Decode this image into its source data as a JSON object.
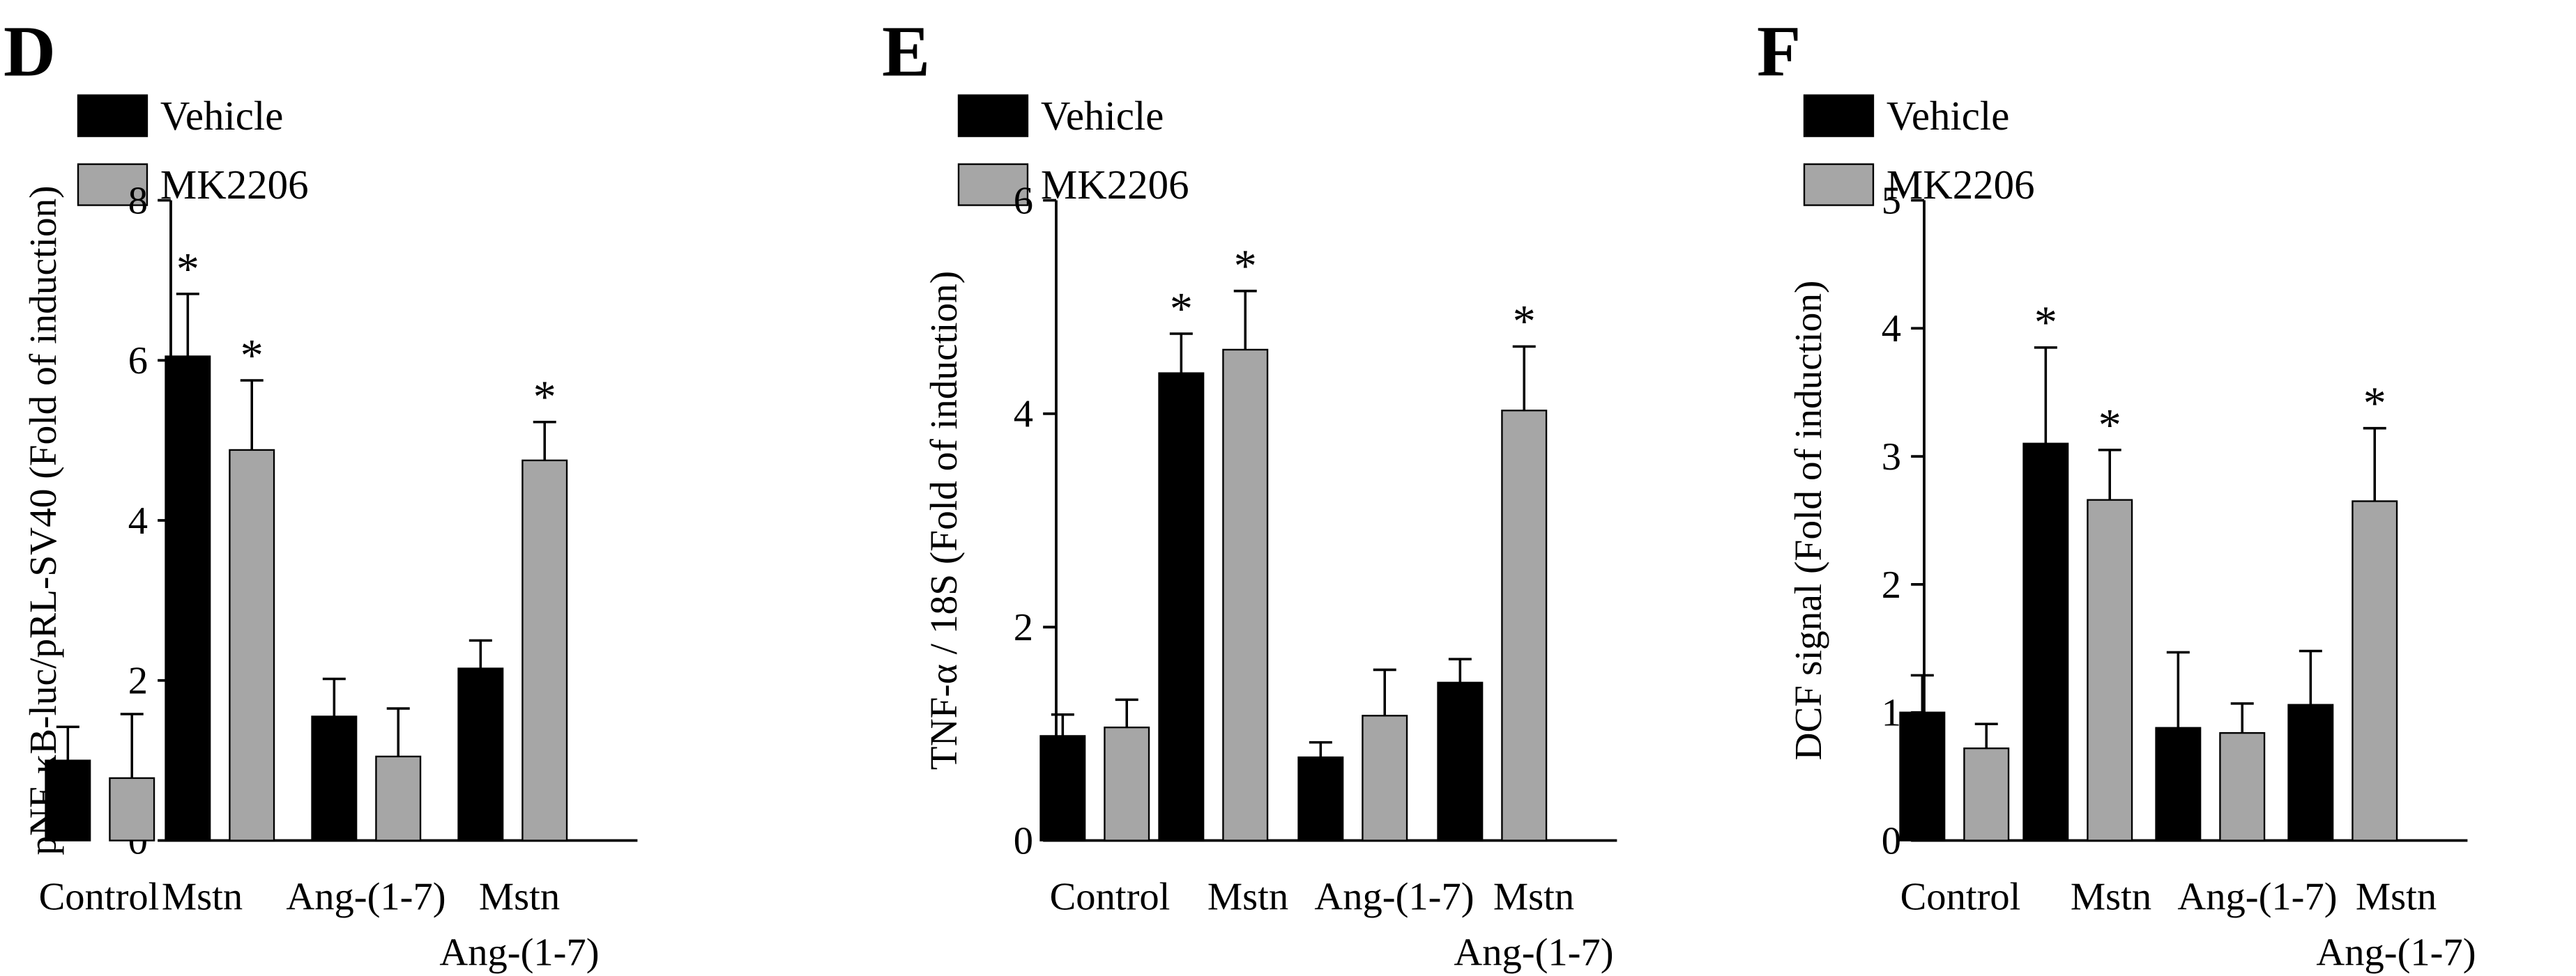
{
  "chart_data": [
    {
      "panel": "D",
      "type": "bar",
      "ylabel": "pNF-κB-luc/pRL-SV40 (Fold of induction)",
      "ylim": [
        0,
        8
      ],
      "yticks": [
        "0",
        "2",
        "4",
        "6",
        "8"
      ],
      "categories": [
        "Control",
        "Mstn",
        "Ang-(1-7)",
        "Mstn\nAng-(1-7)"
      ],
      "series": [
        {
          "name": "Vehicle",
          "color": "#000000",
          "values": [
            1.0,
            6.05,
            1.55,
            2.15
          ],
          "errors": [
            0.42,
            0.78,
            0.47,
            0.35
          ],
          "significance": [
            "",
            "*",
            "",
            ""
          ]
        },
        {
          "name": "MK2206",
          "color": "#a6a6a6",
          "values": [
            0.78,
            4.88,
            1.05,
            4.75
          ],
          "errors": [
            0.8,
            0.87,
            0.6,
            0.48
          ],
          "significance": [
            "",
            "*",
            "",
            "*"
          ]
        }
      ]
    },
    {
      "panel": "E",
      "type": "bar",
      "ylabel": "TNF-α / 18S (Fold of induction)",
      "ylim": [
        0,
        6
      ],
      "yticks": [
        "0",
        "2",
        "4",
        "6"
      ],
      "categories": [
        "Control",
        "Mstn",
        "Ang-(1-7)",
        "Mstn\nAng-(1-7)"
      ],
      "series": [
        {
          "name": "Vehicle",
          "color": "#000000",
          "values": [
            0.98,
            4.38,
            0.78,
            1.48
          ],
          "errors": [
            0.2,
            0.37,
            0.14,
            0.22
          ],
          "significance": [
            "",
            "*",
            "",
            ""
          ]
        },
        {
          "name": "MK2206",
          "color": "#a6a6a6",
          "values": [
            1.06,
            4.6,
            1.17,
            4.03
          ],
          "errors": [
            0.26,
            0.55,
            0.43,
            0.6
          ],
          "significance": [
            "",
            "*",
            "",
            "*"
          ]
        }
      ]
    },
    {
      "panel": "F",
      "type": "bar",
      "ylabel": "DCF signal (Fold of induction)",
      "ylim": [
        0,
        5
      ],
      "yticks": [
        "0",
        "1",
        "2",
        "3",
        "4",
        "5"
      ],
      "categories": [
        "Control",
        "Mstn",
        "Ang-(1-7)",
        "Mstn\nAng-(1-7)"
      ],
      "series": [
        {
          "name": "Vehicle",
          "color": "#000000",
          "values": [
            1.0,
            3.1,
            0.88,
            1.06
          ],
          "errors": [
            0.29,
            0.75,
            0.59,
            0.42
          ],
          "significance": [
            "",
            "*",
            "",
            ""
          ]
        },
        {
          "name": "MK2206",
          "color": "#a6a6a6",
          "values": [
            0.72,
            2.66,
            0.84,
            2.65
          ],
          "errors": [
            0.19,
            0.39,
            0.23,
            0.57
          ],
          "significance": [
            "",
            "*",
            "",
            "*"
          ]
        }
      ]
    }
  ]
}
